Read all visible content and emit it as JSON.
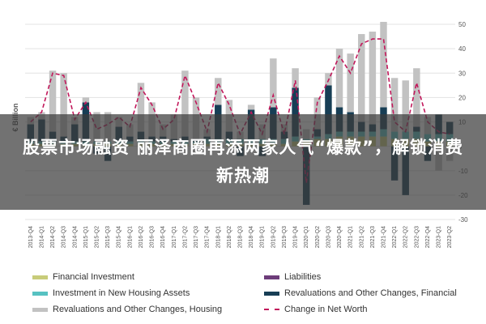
{
  "headline": "股票市场融资 丽泽商圈再添两家人气“爆款”，解锁消费新热潮",
  "chart_data": {
    "type": "bar",
    "stacked": true,
    "ylabel": "€ Billion",
    "ylim": [
      -30,
      50
    ],
    "yticks": [
      -30,
      -20,
      -10,
      0,
      10,
      20,
      30,
      40,
      50
    ],
    "ytick_labels": [
      "-30",
      "-20",
      "-10",
      "0",
      "10",
      "20",
      "30",
      "40",
      "50"
    ],
    "grid": true,
    "legend_position": "bottom",
    "categories": [
      "2013-Q4",
      "2014-Q1",
      "2014-Q2",
      "2014-Q3",
      "2014-Q4",
      "2015-Q1",
      "2015-Q2",
      "2015-Q3",
      "2015-Q4",
      "2016-Q1",
      "2016-Q2",
      "2016-Q3",
      "2016-Q4",
      "2017-Q1",
      "2017-Q2",
      "2017-Q3",
      "2017-Q4",
      "2018-Q1",
      "2018-Q2",
      "2018-Q3",
      "2018-Q4",
      "2019-Q1",
      "2019-Q2",
      "2019-Q3",
      "2019-Q4",
      "2020-Q1",
      "2020-Q2",
      "2020-Q3",
      "2020-Q4",
      "2021-Q1",
      "2021-Q2",
      "2021-Q3",
      "2021-Q4",
      "2022-Q1",
      "2022-Q2",
      "2022-Q3",
      "2022-Q4",
      "2023-Q1",
      "2023-Q2"
    ],
    "series": [
      {
        "name": "Financial Investment",
        "kind": "bar",
        "color": "#c8cc7a",
        "values": [
          1,
          1,
          1,
          1,
          1,
          1,
          1,
          1,
          1,
          1,
          1,
          1,
          1,
          1,
          1,
          1,
          1,
          1,
          1,
          1,
          1,
          1,
          1,
          1,
          2,
          2,
          3,
          3,
          4,
          4,
          4,
          4,
          4,
          3,
          3,
          3,
          2,
          2,
          2
        ]
      },
      {
        "name": "Liabilities",
        "kind": "bar",
        "color": "#6d3d7a",
        "values": [
          0,
          0,
          0,
          0,
          0,
          0,
          0,
          0,
          0,
          0,
          0,
          0,
          0,
          0,
          0,
          0,
          0,
          0,
          0,
          0,
          0,
          0,
          0,
          0,
          0,
          0,
          0,
          0,
          0,
          0,
          0,
          0,
          0,
          0,
          0,
          0,
          0,
          0,
          0
        ]
      },
      {
        "name": "Investment in New Housing Assets",
        "kind": "bar",
        "color": "#57c2c2",
        "values": [
          1,
          1,
          1,
          1,
          1,
          1,
          1,
          1,
          1,
          1,
          1,
          1,
          1,
          1,
          1,
          1,
          2,
          2,
          2,
          2,
          2,
          2,
          2,
          2,
          2,
          1,
          1,
          2,
          2,
          2,
          2,
          2,
          3,
          3,
          3,
          3,
          3,
          3,
          3
        ]
      },
      {
        "name": "Revaluations and Other Changes, Financial",
        "kind": "bar",
        "color": "#173e55",
        "values": [
          7,
          9,
          4,
          2,
          7,
          16,
          -3,
          -6,
          6,
          2,
          4,
          2,
          2,
          1,
          2,
          1,
          1,
          14,
          3,
          -4,
          12,
          -4,
          13,
          3,
          20,
          -24,
          3,
          20,
          10,
          8,
          4,
          3,
          9,
          -14,
          -20,
          2,
          -6,
          8,
          5
        ]
      },
      {
        "name": "Revaluations and Other Changes, Housing",
        "kind": "bar",
        "color": "#c2c2c2",
        "values": [
          3,
          3,
          25,
          26,
          3,
          2,
          12,
          12,
          4,
          5,
          20,
          14,
          5,
          10,
          27,
          17,
          3,
          11,
          13,
          3,
          2,
          6,
          20,
          3,
          8,
          4,
          13,
          5,
          24,
          24,
          36,
          38,
          35,
          22,
          21,
          24,
          7,
          -10,
          -6
        ]
      },
      {
        "name": "Change in Net Worth",
        "kind": "line",
        "color": "#c2185b",
        "values": [
          10,
          14,
          30,
          29,
          11,
          18,
          7,
          9,
          12,
          8,
          24,
          17,
          7,
          11,
          29,
          18,
          6,
          26,
          17,
          5,
          14,
          5,
          21,
          5,
          27,
          -15,
          18,
          27,
          37,
          30,
          42,
          44,
          44,
          10,
          6,
          26,
          10,
          6,
          5
        ]
      }
    ]
  }
}
